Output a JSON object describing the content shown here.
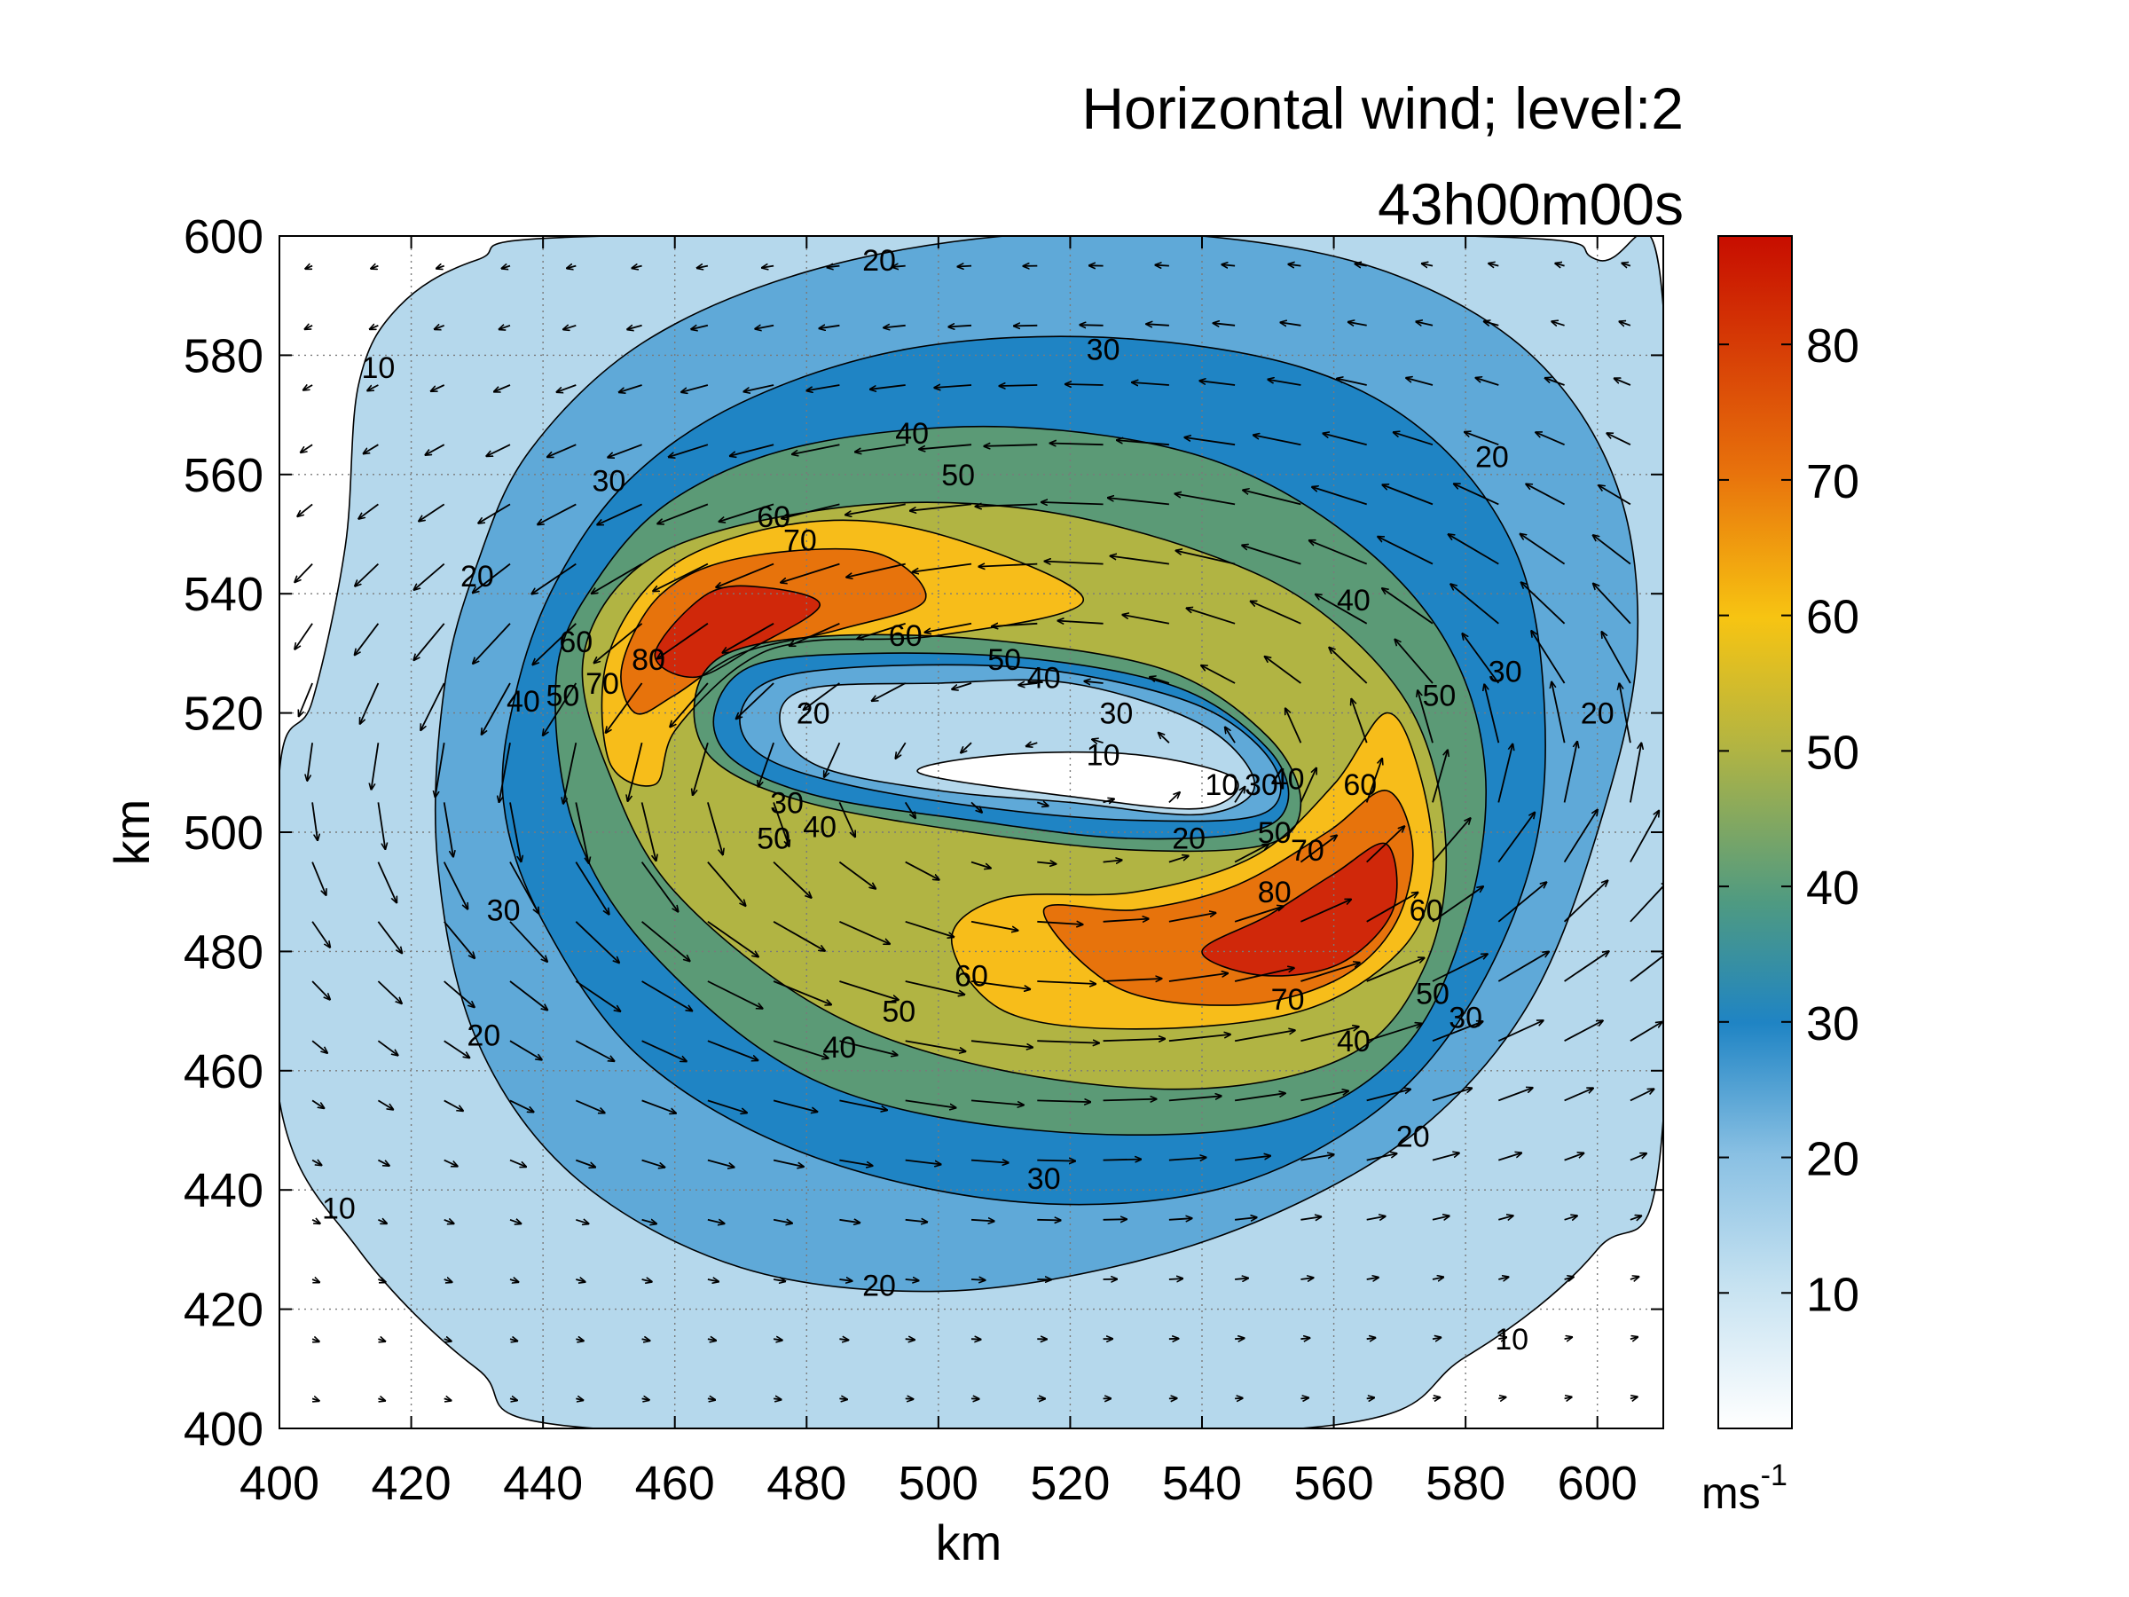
{
  "chart_data": {
    "type": "filled-contour",
    "title": "Horizontal wind; level:2",
    "subtitle": "43h00m00s",
    "xlabel": "km",
    "ylabel": "km",
    "xlim": [
      400,
      610
    ],
    "ylim": [
      400,
      600
    ],
    "xticks": [
      "400",
      "420",
      "440",
      "460",
      "480",
      "500",
      "520",
      "540",
      "560",
      "580",
      "600"
    ],
    "yticks": [
      "400",
      "420",
      "440",
      "460",
      "480",
      "500",
      "520",
      "540",
      "560",
      "580",
      "600"
    ],
    "grid": true,
    "colorbar": {
      "min": 0,
      "max": 88,
      "ticks": [
        "10",
        "20",
        "30",
        "40",
        "50",
        "60",
        "70",
        "80"
      ],
      "unit": "ms",
      "unit_exponent": "-1"
    },
    "contour_levels": [
      10,
      20,
      30,
      40,
      50,
      60,
      70,
      80
    ],
    "level_colors": [
      "#ffffff",
      "#b5d8ec",
      "#5fa9d8",
      "#1f84c4",
      "#5b9a76",
      "#b1b443",
      "#f7bd1a",
      "#e7730c",
      "#d0280a"
    ],
    "contours": [
      {
        "level": 10,
        "points": [
          [
            400,
            510
          ],
          [
            405,
            522
          ],
          [
            410,
            548
          ],
          [
            412,
            575
          ],
          [
            418,
            588
          ],
          [
            430,
            596
          ],
          [
            450,
            600
          ],
          [
            580,
            600
          ],
          [
            600,
            596
          ],
          [
            610,
            588
          ],
          [
            610,
            452
          ],
          [
            600,
            430
          ],
          [
            580,
            412
          ],
          [
            555,
            400
          ],
          [
            448,
            400
          ],
          [
            430,
            410
          ],
          [
            412,
            430
          ],
          [
            400,
            455
          ]
        ]
      },
      {
        "level": 20,
        "points": [
          [
            425,
            524
          ],
          [
            430,
            545
          ],
          [
            438,
            564
          ],
          [
            455,
            582
          ],
          [
            480,
            594
          ],
          [
            510,
            600
          ],
          [
            540,
            600
          ],
          [
            568,
            594
          ],
          [
            590,
            580
          ],
          [
            603,
            558
          ],
          [
            606,
            530
          ],
          [
            600,
            500
          ],
          [
            590,
            472
          ],
          [
            575,
            452
          ],
          [
            555,
            438
          ],
          [
            530,
            428
          ],
          [
            500,
            423
          ],
          [
            470,
            427
          ],
          [
            445,
            442
          ],
          [
            430,
            465
          ],
          [
            424,
            495
          ]
        ]
      },
      {
        "level": 30,
        "points": [
          [
            436,
            524
          ],
          [
            442,
            542
          ],
          [
            453,
            559
          ],
          [
            470,
            572
          ],
          [
            495,
            581
          ],
          [
            525,
            583
          ],
          [
            555,
            578
          ],
          [
            575,
            566
          ],
          [
            588,
            546
          ],
          [
            592,
            520
          ],
          [
            590,
            495
          ],
          [
            580,
            470
          ],
          [
            565,
            452
          ],
          [
            542,
            440
          ],
          [
            512,
            438
          ],
          [
            480,
            446
          ],
          [
            455,
            462
          ],
          [
            440,
            485
          ],
          [
            434,
            505
          ]
        ]
      },
      {
        "level": 40,
        "points": [
          [
            442,
            526
          ],
          [
            448,
            542
          ],
          [
            460,
            556
          ],
          [
            480,
            565
          ],
          [
            510,
            568
          ],
          [
            540,
            563
          ],
          [
            562,
            550
          ],
          [
            577,
            532
          ],
          [
            583,
            510
          ],
          [
            580,
            485
          ],
          [
            570,
            463
          ],
          [
            550,
            451
          ],
          [
            515,
            450
          ],
          [
            482,
            458
          ],
          [
            458,
            478
          ],
          [
            445,
            500
          ]
        ]
      },
      {
        "level": 50,
        "points": [
          [
            446,
            528
          ],
          [
            452,
            542
          ],
          [
            465,
            550
          ],
          [
            490,
            555
          ],
          [
            515,
            554
          ],
          [
            540,
            547
          ],
          [
            558,
            537
          ],
          [
            572,
            520
          ],
          [
            577,
            498
          ],
          [
            574,
            478
          ],
          [
            563,
            463
          ],
          [
            540,
            457
          ],
          [
            510,
            460
          ],
          [
            483,
            470
          ],
          [
            460,
            490
          ],
          [
            450,
            510
          ]
        ]
      },
      {
        "level": 60,
        "points": [
          [
            450,
            512
          ],
          [
            450,
            530
          ],
          [
            460,
            545
          ],
          [
            480,
            552
          ],
          [
            500,
            550
          ],
          [
            522,
            539
          ],
          [
            500,
            533
          ],
          [
            480,
            532
          ],
          [
            470,
            528
          ],
          [
            460,
            517
          ],
          [
            457,
            508
          ]
        ]
      },
      {
        "level": 60,
        "points": [
          [
            502,
            482
          ],
          [
            510,
            470
          ],
          [
            530,
            467
          ],
          [
            555,
            470
          ],
          [
            570,
            480
          ],
          [
            575,
            493
          ],
          [
            573,
            510
          ],
          [
            568,
            520
          ],
          [
            560,
            508
          ],
          [
            548,
            496
          ],
          [
            530,
            490
          ],
          [
            510,
            489
          ]
        ]
      },
      {
        "level": 70,
        "points": [
          [
            452,
            528
          ],
          [
            458,
            540
          ],
          [
            470,
            546
          ],
          [
            490,
            547
          ],
          [
            498,
            539
          ],
          [
            485,
            534
          ],
          [
            470,
            530
          ],
          [
            460,
            523
          ],
          [
            454,
            520
          ]
        ]
      },
      {
        "level": 70,
        "points": [
          [
            516,
            487
          ],
          [
            527,
            474
          ],
          [
            545,
            471
          ],
          [
            560,
            475
          ],
          [
            569,
            484
          ],
          [
            572,
            497
          ],
          [
            568,
            507
          ],
          [
            559,
            500
          ],
          [
            545,
            491
          ],
          [
            530,
            487
          ]
        ]
      },
      {
        "level": 80,
        "points": [
          [
            457,
            530
          ],
          [
            465,
            540
          ],
          [
            474,
            541
          ],
          [
            482,
            538
          ],
          [
            472,
            531
          ],
          [
            463,
            526
          ]
        ]
      },
      {
        "level": 80,
        "points": [
          [
            540,
            480
          ],
          [
            549,
            476
          ],
          [
            561,
            478
          ],
          [
            569,
            487
          ],
          [
            568,
            498
          ],
          [
            560,
            493
          ],
          [
            550,
            486
          ]
        ]
      },
      {
        "level": 50,
        "points": [
          [
            463,
            522
          ],
          [
            468,
            530
          ],
          [
            485,
            533
          ],
          [
            510,
            532
          ],
          [
            535,
            527
          ],
          [
            550,
            516
          ],
          [
            555,
            505
          ],
          [
            550,
            498
          ],
          [
            530,
            497
          ],
          [
            505,
            500
          ],
          [
            480,
            505
          ],
          [
            466,
            512
          ]
        ],
        "inner": true
      },
      {
        "level": 40,
        "points": [
          [
            466,
            520
          ],
          [
            472,
            528
          ],
          [
            490,
            530
          ],
          [
            515,
            529
          ],
          [
            537,
            524
          ],
          [
            550,
            514
          ],
          [
            553,
            505
          ],
          [
            547,
            500
          ],
          [
            528,
            499
          ],
          [
            505,
            502
          ],
          [
            482,
            506
          ],
          [
            469,
            512
          ]
        ],
        "inner": true
      },
      {
        "level": 30,
        "points": [
          [
            470,
            520
          ],
          [
            476,
            526
          ],
          [
            495,
            528
          ],
          [
            518,
            527
          ],
          [
            540,
            521
          ],
          [
            551,
            511
          ],
          [
            549,
            503
          ],
          [
            530,
            502
          ],
          [
            508,
            504
          ],
          [
            486,
            508
          ],
          [
            473,
            513
          ]
        ],
        "inner": true
      },
      {
        "level": 20,
        "points": [
          [
            476,
            518
          ],
          [
            480,
            524
          ],
          [
            500,
            525
          ],
          [
            520,
            525
          ],
          [
            540,
            518
          ],
          [
            548,
            508
          ],
          [
            540,
            503
          ],
          [
            520,
            505
          ],
          [
            500,
            507
          ],
          [
            482,
            511
          ]
        ],
        "inner": true
      },
      {
        "level": 10,
        "points": [
          [
            497,
            510
          ],
          [
            510,
            513
          ],
          [
            530,
            513
          ],
          [
            545,
            509
          ],
          [
            540,
            504
          ],
          [
            520,
            506
          ]
        ],
        "inner": true
      }
    ],
    "contour_labels": [
      {
        "text": "20",
        "x": 491,
        "y": 596
      },
      {
        "text": "30",
        "x": 525,
        "y": 581
      },
      {
        "text": "10",
        "x": 415,
        "y": 578
      },
      {
        "text": "40",
        "x": 496,
        "y": 567
      },
      {
        "text": "20",
        "x": 584,
        "y": 563
      },
      {
        "text": "30",
        "x": 450,
        "y": 559
      },
      {
        "text": "50",
        "x": 503,
        "y": 560
      },
      {
        "text": "60",
        "x": 475,
        "y": 553
      },
      {
        "text": "70",
        "x": 479,
        "y": 549
      },
      {
        "text": "20",
        "x": 430,
        "y": 543
      },
      {
        "text": "40",
        "x": 563,
        "y": 539
      },
      {
        "text": "60",
        "x": 495,
        "y": 533
      },
      {
        "text": "60",
        "x": 445,
        "y": 532
      },
      {
        "text": "80",
        "x": 456,
        "y": 529
      },
      {
        "text": "30",
        "x": 586,
        "y": 527
      },
      {
        "text": "50",
        "x": 510,
        "y": 529
      },
      {
        "text": "40",
        "x": 516,
        "y": 526
      },
      {
        "text": "70",
        "x": 449,
        "y": 525
      },
      {
        "text": "40",
        "x": 437,
        "y": 522
      },
      {
        "text": "50",
        "x": 443,
        "y": 523
      },
      {
        "text": "50",
        "x": 576,
        "y": 523
      },
      {
        "text": "20",
        "x": 481,
        "y": 520
      },
      {
        "text": "30",
        "x": 527,
        "y": 520
      },
      {
        "text": "20",
        "x": 600,
        "y": 520
      },
      {
        "text": "10",
        "x": 525,
        "y": 513
      },
      {
        "text": "10",
        "x": 543,
        "y": 508
      },
      {
        "text": "30",
        "x": 549,
        "y": 508
      },
      {
        "text": "40",
        "x": 553,
        "y": 509
      },
      {
        "text": "60",
        "x": 564,
        "y": 508
      },
      {
        "text": "30",
        "x": 477,
        "y": 505
      },
      {
        "text": "40",
        "x": 482,
        "y": 501
      },
      {
        "text": "50",
        "x": 475,
        "y": 499
      },
      {
        "text": "20",
        "x": 538,
        "y": 499
      },
      {
        "text": "50",
        "x": 551,
        "y": 500
      },
      {
        "text": "70",
        "x": 556,
        "y": 497
      },
      {
        "text": "80",
        "x": 551,
        "y": 490
      },
      {
        "text": "30",
        "x": 434,
        "y": 487
      },
      {
        "text": "60",
        "x": 574,
        "y": 487
      },
      {
        "text": "60",
        "x": 505,
        "y": 476
      },
      {
        "text": "50",
        "x": 575,
        "y": 473
      },
      {
        "text": "70",
        "x": 553,
        "y": 472
      },
      {
        "text": "50",
        "x": 494,
        "y": 470
      },
      {
        "text": "30",
        "x": 580,
        "y": 469
      },
      {
        "text": "20",
        "x": 431,
        "y": 466
      },
      {
        "text": "40",
        "x": 563,
        "y": 465
      },
      {
        "text": "40",
        "x": 485,
        "y": 464
      },
      {
        "text": "20",
        "x": 572,
        "y": 449
      },
      {
        "text": "30",
        "x": 516,
        "y": 442
      },
      {
        "text": "10",
        "x": 409,
        "y": 437
      },
      {
        "text": "20",
        "x": 491,
        "y": 424
      },
      {
        "text": "10",
        "x": 587,
        "y": 415
      }
    ],
    "vector_field": {
      "description": "cyclonic (counter-clockwise) rotation around center",
      "center": [
        520,
        510
      ],
      "grid_spacing": 10,
      "ellipse_axes": [
        80,
        45
      ],
      "max_speed": 88
    }
  }
}
